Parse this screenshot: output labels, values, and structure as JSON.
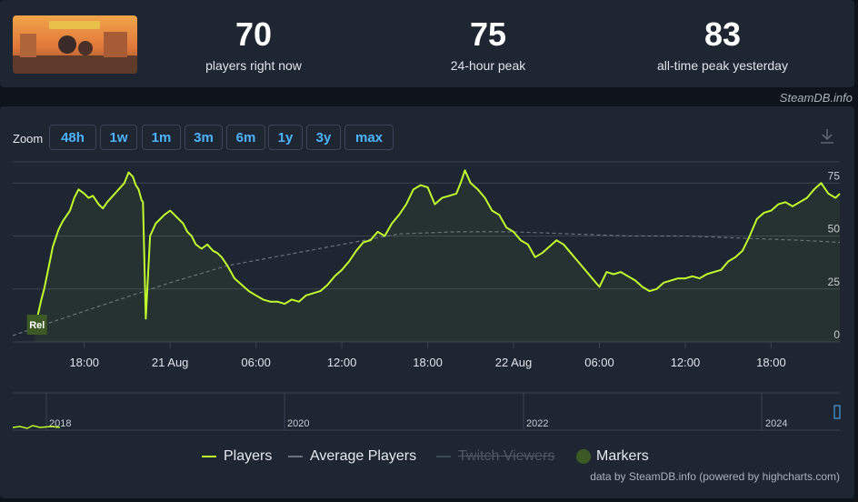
{
  "header": {
    "stats": [
      {
        "value": "70",
        "label": "players right now"
      },
      {
        "value": "75",
        "label": "24-hour peak"
      },
      {
        "value": "83",
        "label": "all-time peak yesterday"
      }
    ],
    "credit": "SteamDB.info"
  },
  "zoom": {
    "label": "Zoom",
    "buttons": [
      "48h",
      "1w",
      "1m",
      "3m",
      "6m",
      "1y",
      "3y",
      "max"
    ]
  },
  "colors": {
    "players": "#c0fb2d",
    "average": "#6b727c",
    "twitch": "#3a4a55",
    "marker": "#3d5a26",
    "grid": "#3a4350"
  },
  "chart_data": {
    "type": "line",
    "ylim": [
      0,
      85
    ],
    "yticks": [
      "0",
      "25",
      "50",
      "75"
    ],
    "xticks": [
      "18:00",
      "21 Aug",
      "06:00",
      "12:00",
      "18:00",
      "22 Aug",
      "06:00",
      "12:00",
      "18:00"
    ],
    "xtick_hours": [
      18,
      24,
      30,
      36,
      42,
      48,
      54,
      60,
      66
    ],
    "xlim_hours": [
      13,
      70.8
    ],
    "marker_label": "Rel",
    "marker_hour": 14.7,
    "series": [
      {
        "name": "Players",
        "points": [
          [
            14.5,
            5
          ],
          [
            15.0,
            20
          ],
          [
            15.2,
            25
          ],
          [
            15.5,
            35
          ],
          [
            15.8,
            45
          ],
          [
            16.2,
            53
          ],
          [
            16.5,
            57
          ],
          [
            17.0,
            62
          ],
          [
            17.3,
            68
          ],
          [
            17.6,
            72
          ],
          [
            18.0,
            70
          ],
          [
            18.3,
            68
          ],
          [
            18.6,
            69
          ],
          [
            19.0,
            65
          ],
          [
            19.3,
            63
          ],
          [
            19.6,
            66
          ],
          [
            20.0,
            69
          ],
          [
            20.4,
            72
          ],
          [
            20.8,
            75
          ],
          [
            21.1,
            80
          ],
          [
            21.4,
            78
          ],
          [
            21.6,
            74
          ],
          [
            21.8,
            72
          ],
          [
            22.0,
            67
          ],
          [
            22.1,
            66
          ],
          [
            22.3,
            11
          ],
          [
            22.6,
            50
          ],
          [
            23.0,
            56
          ],
          [
            23.3,
            58
          ],
          [
            23.6,
            60
          ],
          [
            24.0,
            62
          ],
          [
            24.3,
            60
          ],
          [
            24.6,
            58
          ],
          [
            24.9,
            56
          ],
          [
            25.2,
            52
          ],
          [
            25.5,
            50
          ],
          [
            25.8,
            46
          ],
          [
            26.2,
            44
          ],
          [
            26.6,
            46
          ],
          [
            27.0,
            43
          ],
          [
            27.3,
            42
          ],
          [
            27.6,
            40
          ],
          [
            28.0,
            36
          ],
          [
            28.5,
            30
          ],
          [
            29.0,
            27
          ],
          [
            29.5,
            24
          ],
          [
            30.0,
            22
          ],
          [
            30.5,
            20
          ],
          [
            31.0,
            19
          ],
          [
            31.5,
            19
          ],
          [
            32.0,
            18
          ],
          [
            32.5,
            20
          ],
          [
            33.0,
            19
          ],
          [
            33.5,
            22
          ],
          [
            34.0,
            23
          ],
          [
            34.5,
            24
          ],
          [
            35.0,
            27
          ],
          [
            35.5,
            31
          ],
          [
            36.0,
            34
          ],
          [
            36.5,
            38
          ],
          [
            37.0,
            43
          ],
          [
            37.5,
            47
          ],
          [
            38.0,
            48
          ],
          [
            38.5,
            52
          ],
          [
            39.0,
            50
          ],
          [
            39.5,
            56
          ],
          [
            40.0,
            60
          ],
          [
            40.5,
            65
          ],
          [
            41.0,
            72
          ],
          [
            41.5,
            74
          ],
          [
            42.0,
            73
          ],
          [
            42.5,
            65
          ],
          [
            43.0,
            68
          ],
          [
            43.5,
            69
          ],
          [
            44.0,
            70
          ],
          [
            44.3,
            75
          ],
          [
            44.6,
            81
          ],
          [
            45.0,
            75
          ],
          [
            45.5,
            72
          ],
          [
            46.0,
            68
          ],
          [
            46.5,
            62
          ],
          [
            47.0,
            60
          ],
          [
            47.5,
            54
          ],
          [
            48.0,
            52
          ],
          [
            48.5,
            48
          ],
          [
            49.0,
            46
          ],
          [
            49.5,
            40
          ],
          [
            50.0,
            42
          ],
          [
            50.5,
            45
          ],
          [
            51.0,
            48
          ],
          [
            51.5,
            46
          ],
          [
            52.0,
            42
          ],
          [
            52.5,
            38
          ],
          [
            53.0,
            34
          ],
          [
            53.5,
            30
          ],
          [
            54.0,
            26
          ],
          [
            54.5,
            33
          ],
          [
            55.0,
            32
          ],
          [
            55.5,
            33
          ],
          [
            56.0,
            31
          ],
          [
            56.5,
            29
          ],
          [
            57.0,
            26
          ],
          [
            57.5,
            24
          ],
          [
            58.0,
            25
          ],
          [
            58.5,
            28
          ],
          [
            59.0,
            29
          ],
          [
            59.5,
            30
          ],
          [
            60.0,
            30
          ],
          [
            60.5,
            31
          ],
          [
            61.0,
            30
          ],
          [
            61.5,
            32
          ],
          [
            62.0,
            33
          ],
          [
            62.5,
            34
          ],
          [
            63.0,
            38
          ],
          [
            63.5,
            40
          ],
          [
            64.0,
            43
          ],
          [
            64.5,
            50
          ],
          [
            65.0,
            58
          ],
          [
            65.5,
            61
          ],
          [
            66.0,
            62
          ],
          [
            66.5,
            65
          ],
          [
            67.0,
            66
          ],
          [
            67.5,
            64
          ],
          [
            68.0,
            66
          ],
          [
            68.5,
            68
          ],
          [
            69.0,
            72
          ],
          [
            69.5,
            75
          ],
          [
            70.0,
            70
          ],
          [
            70.5,
            68
          ],
          [
            70.8,
            70
          ]
        ]
      },
      {
        "name": "Average Players",
        "points": [
          [
            13,
            3
          ],
          [
            16,
            10
          ],
          [
            20,
            19
          ],
          [
            24,
            28
          ],
          [
            28,
            36
          ],
          [
            32,
            41
          ],
          [
            36,
            46
          ],
          [
            40,
            51
          ],
          [
            44,
            52
          ],
          [
            48,
            52
          ],
          [
            52,
            51
          ],
          [
            56,
            50
          ],
          [
            60,
            50
          ],
          [
            64,
            49
          ],
          [
            68,
            48
          ],
          [
            70.8,
            47
          ]
        ]
      }
    ]
  },
  "navigator": {
    "years": [
      "2018",
      "2020",
      "2022",
      "2024"
    ]
  },
  "legend": {
    "items": [
      {
        "label": "Players",
        "state": "on"
      },
      {
        "label": "Average Players",
        "state": "on"
      },
      {
        "label": "Twitch Viewers",
        "state": "off"
      },
      {
        "label": "Markers",
        "state": "on"
      }
    ]
  },
  "footer": {
    "powered": "data by SteamDB.info (powered by highcharts.com)"
  }
}
